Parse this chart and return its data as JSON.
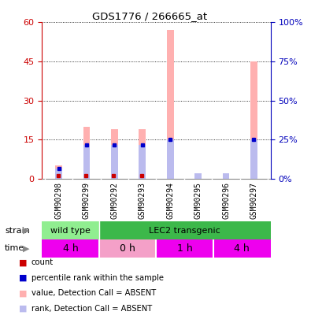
{
  "title": "GDS1776 / 266665_at",
  "samples": [
    "GSM90298",
    "GSM90299",
    "GSM90292",
    "GSM90293",
    "GSM90294",
    "GSM90295",
    "GSM90296",
    "GSM90297"
  ],
  "pink_bar_values": [
    5,
    20,
    19,
    19,
    57,
    2,
    2,
    45
  ],
  "light_blue_bar_values": [
    4,
    13,
    13,
    13,
    15,
    2,
    2,
    15
  ],
  "red_dot_values": [
    1.0,
    1.0,
    1.0,
    1.0,
    0,
    0,
    0,
    0
  ],
  "blue_dot_values": [
    4,
    13,
    13,
    13,
    15,
    0,
    0,
    15
  ],
  "ylim_left": [
    0,
    60
  ],
  "ylim_right": [
    0,
    100
  ],
  "yticks_left": [
    0,
    15,
    30,
    45,
    60
  ],
  "yticks_right": [
    0,
    25,
    50,
    75,
    100
  ],
  "strain_labels": [
    {
      "text": "wild type",
      "start": 0,
      "end": 2,
      "color": "#90EE90"
    },
    {
      "text": "LEC2 transgenic",
      "start": 2,
      "end": 8,
      "color": "#3CB84A"
    }
  ],
  "time_labels": [
    {
      "text": "4 h",
      "start": 0,
      "end": 2,
      "color": "#EE00EE"
    },
    {
      "text": "0 h",
      "start": 2,
      "end": 4,
      "color": "#F4A0C8"
    },
    {
      "text": "1 h",
      "start": 4,
      "end": 6,
      "color": "#EE00EE"
    },
    {
      "text": "4 h",
      "start": 6,
      "end": 8,
      "color": "#EE00EE"
    }
  ],
  "legend_items": [
    {
      "label": "count",
      "color": "#CC0000"
    },
    {
      "label": "percentile rank within the sample",
      "color": "#0000CC"
    },
    {
      "label": "value, Detection Call = ABSENT",
      "color": "#FFB0B0"
    },
    {
      "label": "rank, Detection Call = ABSENT",
      "color": "#BBBBEE"
    }
  ],
  "bar_color_pink": "#FFB0B0",
  "bar_color_blue": "#BBBBEE",
  "dot_color_red": "#CC0000",
  "dot_color_blue": "#0000CC",
  "axis_color_left": "#CC0000",
  "axis_color_right": "#0000BB",
  "bar_width": 0.25,
  "strain_row_label": "strain",
  "time_row_label": "time",
  "xticklabel_bg": "#C8C8C8"
}
